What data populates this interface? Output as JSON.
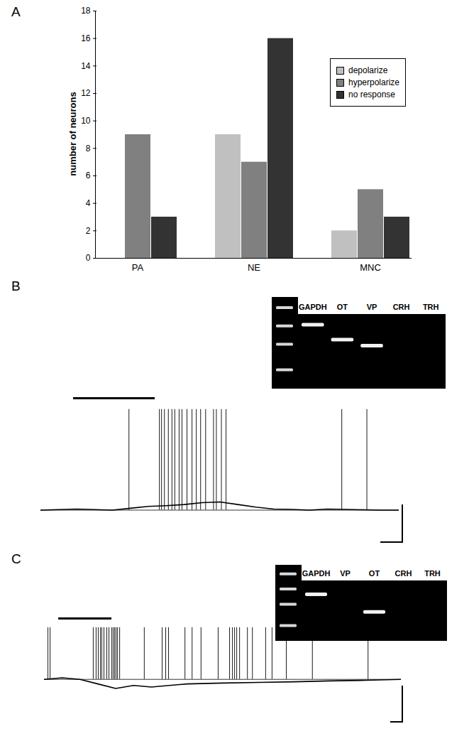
{
  "chart_data": [
    {
      "type": "bar",
      "panel": "A",
      "ylabel": "number of neurons",
      "categories": [
        "PA",
        "NE",
        "MNC"
      ],
      "series": [
        {
          "name": "depolarize",
          "color": "#c0c0c0",
          "values": [
            0,
            9,
            2
          ]
        },
        {
          "name": "hyperpolarize",
          "color": "#808080",
          "values": [
            9,
            7,
            5
          ]
        },
        {
          "name": "no response",
          "color": "#333333",
          "values": [
            3,
            16,
            3
          ]
        }
      ],
      "ylim": [
        0,
        18
      ],
      "yticks": [
        0,
        2,
        4,
        6,
        8,
        10,
        12,
        14,
        16,
        18
      ],
      "legend": "right",
      "grid": false
    },
    {
      "type": "trace",
      "panel": "B",
      "tick_labels": false,
      "x": [
        0,
        10,
        20,
        25,
        30,
        35,
        40,
        45,
        50,
        55,
        60,
        65,
        70,
        75,
        80,
        85,
        90,
        95,
        100
      ],
      "values": [
        0,
        0.3,
        0,
        0.5,
        1,
        1.2,
        1.5,
        2,
        2.2,
        1.5,
        0.8,
        0.3,
        0.2,
        0,
        0.3,
        0.2,
        0.1,
        0,
        0
      ],
      "xlim": [
        0,
        100
      ],
      "ylim": [
        -10,
        30
      ],
      "baseline": 0,
      "spikes": [
        24.6,
        33.1,
        33.7,
        34.5,
        35.6,
        36.6,
        37.4,
        38.6,
        39.4,
        40.8,
        42.2,
        43.4,
        44.6,
        46.0,
        48.2,
        49.0,
        50.4,
        51.7,
        84.0,
        91.0
      ],
      "spike_peak": 27,
      "application": [
        9.1,
        31.9
      ],
      "gel": {
        "lanes": [
          "GAPDH",
          "OT",
          "VP",
          "CRH",
          "TRH"
        ],
        "band_migration": [
          12,
          32,
          40,
          null,
          null
        ]
      }
    },
    {
      "type": "trace",
      "panel": "C",
      "tick_labels": false,
      "x": [
        0,
        5,
        10,
        15,
        20,
        25,
        30,
        35,
        40,
        50,
        60,
        70,
        80,
        90,
        100
      ],
      "values": [
        0,
        0.5,
        0,
        -1.5,
        -3,
        -2,
        -2.5,
        -2,
        -1.5,
        -1.2,
        -1,
        -0.8,
        -0.5,
        -0.3,
        0
      ],
      "xlim": [
        0,
        100
      ],
      "ylim": [
        -15,
        20
      ],
      "baseline": 0,
      "spikes": [
        1.0,
        1.6,
        13.7,
        14.5,
        15.1,
        15.7,
        16.1,
        16.7,
        17.5,
        18.1,
        18.9,
        19.3,
        19.7,
        20.1,
        20.5,
        21.1,
        28.0,
        33.0,
        34.0,
        34.8,
        39.4,
        41.4,
        43.9,
        48.7,
        51.9,
        52.7,
        53.3,
        53.9,
        54.7,
        56.9,
        58.3,
        62.0,
        63.8,
        67.8,
        75.1,
        90.7
      ],
      "spike_peak": 17,
      "application": [
        4.0,
        18.9
      ],
      "gel": {
        "lanes": [
          "GAPDH",
          "VP",
          "OT",
          "CRH",
          "TRH"
        ],
        "band_migration": [
          20,
          null,
          49,
          null,
          null
        ]
      }
    }
  ]
}
